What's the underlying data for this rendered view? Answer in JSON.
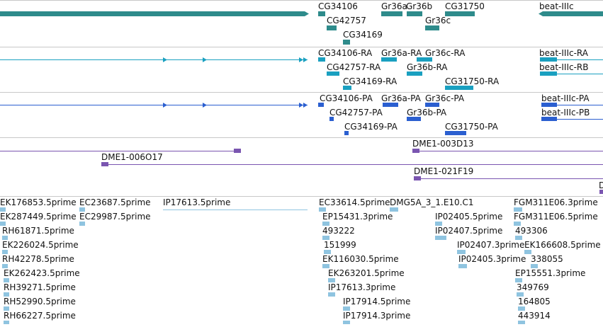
{
  "colors": {
    "gene": "#2e8b8b",
    "mrna": "#1aa0c0",
    "cds": "#2b5fd0",
    "clone": "#7a55b0",
    "est": "#8fc4e0",
    "divider": "#c8c8c8"
  },
  "tracks": {
    "genes": {
      "labels": [
        "CG34106",
        "Gr36a",
        "Gr36b",
        "CG31750",
        "beat-IIIc",
        "CG42757",
        "Gr36c",
        "CG34169"
      ]
    },
    "transcripts": {
      "labels": [
        "CG34106-RA",
        "Gr36a-RA",
        "Gr36c-RA",
        "beat-IIIc-RA",
        "CG42757-RA",
        "Gr36b-RA",
        "beat-IIIc-RB",
        "CG34169-RA",
        "CG31750-RA"
      ]
    },
    "proteins": {
      "labels": [
        "CG34106-PA",
        "Gr36a-PA",
        "Gr36c-PA",
        "beat-IIIc-PA",
        "CG42757-PA",
        "Gr36b-PA",
        "beat-IIIc-PB",
        "CG34169-PA",
        "CG31750-PA"
      ]
    },
    "clones": {
      "labels": [
        "DME1-003D13",
        "DME1-006O17",
        "DME1-021F19",
        "D"
      ]
    },
    "ests": {
      "labels": [
        "EK176853.5prime",
        "EC23687.5prime",
        "IP17613.5prime",
        "EC33614.5prime",
        "DMG5A_3_1.E10.C1",
        "FGM311E06.3prime",
        "EK287449.5prime",
        "EC29987.5prime",
        "EP15431.3prime",
        "IP02405.5prime",
        "FGM311E06.5prime",
        "RH61871.5prime",
        "493222",
        "IP02407.5prime",
        "493306",
        "EK226024.5prime",
        "151999",
        "IP02407.3prime",
        "EK166608.5prime",
        "RH42278.5prime",
        "EK116030.5prime",
        "IP02405.3prime",
        "338055",
        "EK262423.5prime",
        "EK263201.5prime",
        "EP15551.3prime",
        "RH39271.5prime",
        "IP17613.3prime",
        "349769",
        "RH52990.5prime",
        "IP17914.5prime",
        "164805",
        "RH66227.5prime",
        "IP17914.3prime",
        "443914"
      ]
    }
  }
}
